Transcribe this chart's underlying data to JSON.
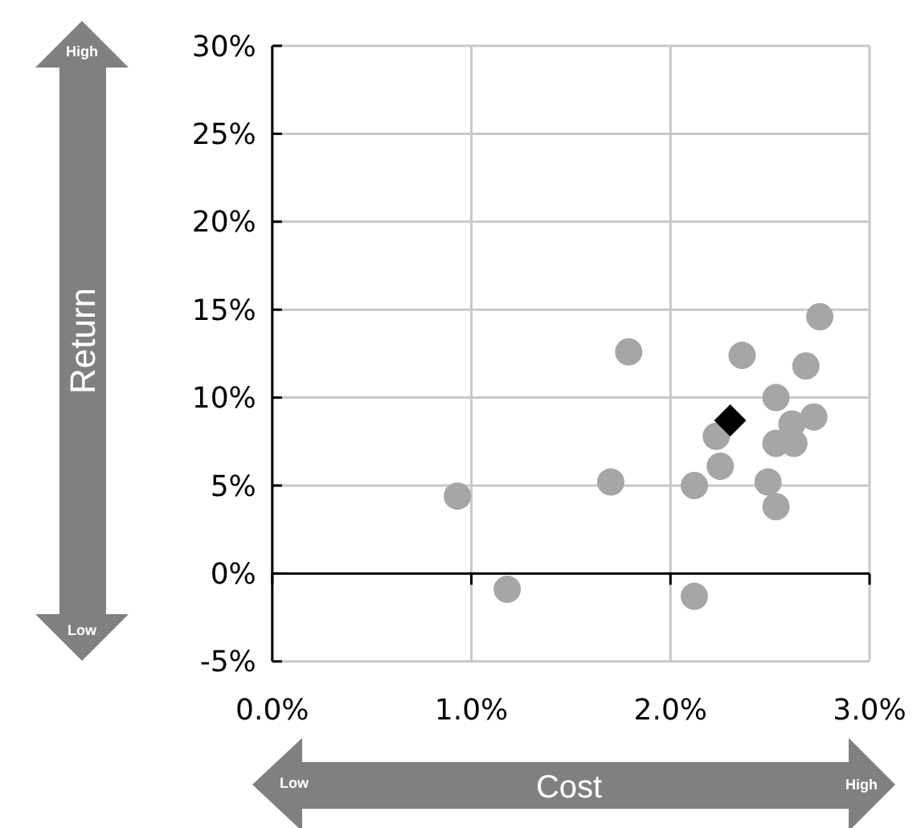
{
  "chart_data": {
    "type": "scatter",
    "xlabel": "Cost",
    "ylabel": "Return",
    "xlim": [
      0,
      3
    ],
    "xticks": [
      {
        "value": 0,
        "label": "0.0%"
      },
      {
        "value": 1,
        "label": "1.0%"
      },
      {
        "value": 2,
        "label": "2.0%"
      },
      {
        "value": 3,
        "label": "3.0%"
      }
    ],
    "ylim": [
      -5,
      30
    ],
    "yticks": [
      {
        "value": -5,
        "label": "-5%"
      },
      {
        "value": 0,
        "label": "0%"
      },
      {
        "value": 5,
        "label": "5%"
      },
      {
        "value": 10,
        "label": "10%"
      },
      {
        "value": 15,
        "label": "15%"
      },
      {
        "value": 20,
        "label": "20%"
      },
      {
        "value": 25,
        "label": "25%"
      },
      {
        "value": 30,
        "label": "30%"
      }
    ],
    "grid": true,
    "annotations": [
      "High",
      "Low",
      "Low",
      "High"
    ],
    "series": [
      {
        "color": "#a6a6a6",
        "marker": "circle",
        "x": [
          2.75,
          1.79,
          2.36,
          2.68,
          2.53,
          2.72,
          2.61,
          2.62,
          2.53,
          2.23,
          2.25,
          1.7,
          2.12,
          2.49,
          2.53,
          0.93,
          1.18,
          2.12
        ],
        "values": [
          14.6,
          12.6,
          12.4,
          11.8,
          10.0,
          8.9,
          8.5,
          7.4,
          7.4,
          7.8,
          6.1,
          5.2,
          5.0,
          5.2,
          3.8,
          4.4,
          -0.9,
          -1.3
        ]
      },
      {
        "color": "#000000",
        "marker": "diamond",
        "x": [
          2.3
        ],
        "values": [
          8.7
        ]
      }
    ]
  }
}
